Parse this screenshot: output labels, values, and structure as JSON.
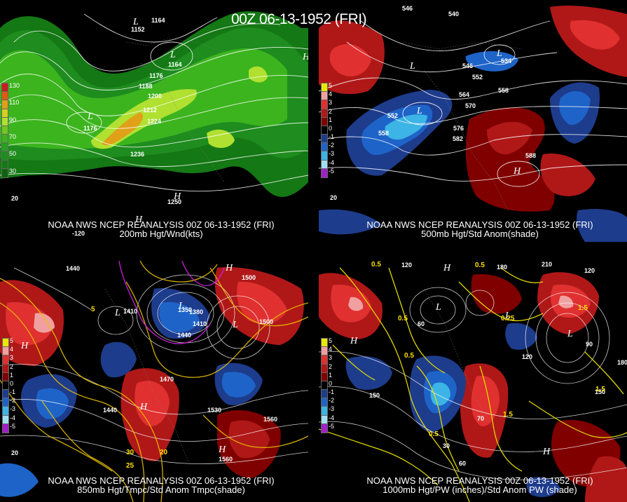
{
  "header": {
    "title": "00Z 06-13-1952 (FRI)"
  },
  "panels": [
    {
      "id": "p200",
      "line1": "NOAA NWS NCEP REANALYSIS 00Z 06-13-1952 (FRI)",
      "line2": "200mb Hgt/Wnd(kts)",
      "colorbar": [
        {
          "label": "130",
          "color": "#c81e1e"
        },
        {
          "label": "",
          "color": "#e05a10"
        },
        {
          "label": "110",
          "color": "#e0a018"
        },
        {
          "label": "",
          "color": "#d8d020"
        },
        {
          "label": "90",
          "color": "#b0e030"
        },
        {
          "label": "",
          "color": "#70c820"
        },
        {
          "label": "70",
          "color": "#3cb41e"
        },
        {
          "label": "",
          "color": "#28a01e"
        },
        {
          "label": "50",
          "color": "#1e8c1e"
        },
        {
          "label": "",
          "color": "#147814"
        },
        {
          "label": "30",
          "color": "#0e640e"
        }
      ],
      "labels": [
        "1164",
        "1176",
        "1188",
        "1200",
        "1212",
        "1224",
        "1236",
        "1176",
        "1250",
        "1152",
        "1164",
        "20",
        "-120"
      ]
    },
    {
      "id": "p500",
      "line1": "NOAA NWS NCEP REANALYSIS 00Z 06-13-1952 (FRI)",
      "line2": "500mb Hgt/Std Anom(shade)",
      "colorbar": [
        {
          "label": "5",
          "color": "#e8e800"
        },
        {
          "label": "4",
          "color": "#f0a0a0"
        },
        {
          "label": "3",
          "color": "#e03030"
        },
        {
          "label": "2",
          "color": "#b01818"
        },
        {
          "label": "1",
          "color": "#800000"
        },
        {
          "label": "0",
          "color": "#000000"
        },
        {
          "label": "-1",
          "color": "#1e3c8c"
        },
        {
          "label": "-2",
          "color": "#1e64c8"
        },
        {
          "label": "-3",
          "color": "#3cb4e6"
        },
        {
          "label": "-4",
          "color": "#a0e0f0"
        },
        {
          "label": "-5",
          "color": "#a020c8"
        }
      ],
      "labels": [
        "546",
        "540",
        "534",
        "552",
        "558",
        "564",
        "570",
        "576",
        "582",
        "588",
        "546",
        "552",
        "558",
        "20"
      ]
    },
    {
      "id": "p850",
      "line1": "NOAA NWS NCEP REANALYSIS 00Z 06-13-1952 (FRI)",
      "line2": "850mb Hgt/Tmpc/Std Anom Tmpc(shade)",
      "colorbar": [
        {
          "label": "5",
          "color": "#e8e800"
        },
        {
          "label": "4",
          "color": "#f0a0a0"
        },
        {
          "label": "3",
          "color": "#e03030"
        },
        {
          "label": "2",
          "color": "#b01818"
        },
        {
          "label": "1",
          "color": "#800000"
        },
        {
          "label": "0",
          "color": "#000000"
        },
        {
          "label": "-1",
          "color": "#1e3c8c"
        },
        {
          "label": "-2",
          "color": "#1e64c8"
        },
        {
          "label": "-3",
          "color": "#3cb4e6"
        },
        {
          "label": "-4",
          "color": "#a0e0f0"
        },
        {
          "label": "-5",
          "color": "#a020c8"
        }
      ],
      "labels": [
        "1440",
        "1500",
        "1410",
        "1350",
        "1380",
        "1410",
        "1440",
        "1500",
        "1470",
        "1440",
        "1530",
        "1560",
        "1560",
        "30",
        "25",
        "20",
        "5",
        "20"
      ]
    },
    {
      "id": "p1000",
      "line1": "NOAA NWS NCEP REANALYSIS 00Z 06-13-1952 (FRI)",
      "line2": "1000mb Hgt/PW (inches)/Std Anom PW (shade)",
      "colorbar": [
        {
          "label": "5",
          "color": "#e8e800"
        },
        {
          "label": "4",
          "color": "#f0a0a0"
        },
        {
          "label": "3",
          "color": "#e03030"
        },
        {
          "label": "2",
          "color": "#b01818"
        },
        {
          "label": "1",
          "color": "#800000"
        },
        {
          "label": "0",
          "color": "#000000"
        },
        {
          "label": "-1",
          "color": "#1e3c8c"
        },
        {
          "label": "-2",
          "color": "#1e64c8"
        },
        {
          "label": "-3",
          "color": "#3cb4e6"
        },
        {
          "label": "-4",
          "color": "#a0e0f0"
        },
        {
          "label": "-5",
          "color": "#a020c8"
        }
      ],
      "labels": [
        "0.5",
        "0.5",
        "120",
        "180",
        "210",
        "120",
        "60",
        "1.5",
        "0.5",
        "150",
        "120",
        "90",
        "180",
        "150",
        "1.5",
        "0.5",
        "70",
        "60",
        "30",
        "1.5",
        "0.5",
        "0.25"
      ]
    }
  ]
}
